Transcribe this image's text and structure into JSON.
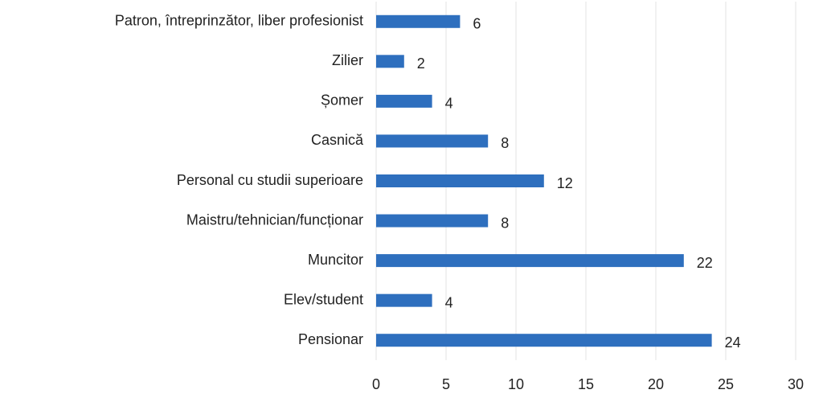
{
  "chart_data": {
    "type": "barh",
    "categories": [
      "Patron, întreprinzător, liber profesionist",
      "Zilier",
      "Șomer",
      "Casnică",
      "Personal cu studii superioare",
      "Maistru/tehnician/funcționar",
      "Muncitor",
      "Elev/student",
      "Pensionar"
    ],
    "values": [
      6,
      2,
      4,
      8,
      12,
      8,
      22,
      4,
      24
    ],
    "color": "#2e6fbe",
    "xlim": [
      0,
      30
    ],
    "xticks": [
      0,
      5,
      10,
      15,
      20,
      25,
      30
    ],
    "grid": true
  }
}
